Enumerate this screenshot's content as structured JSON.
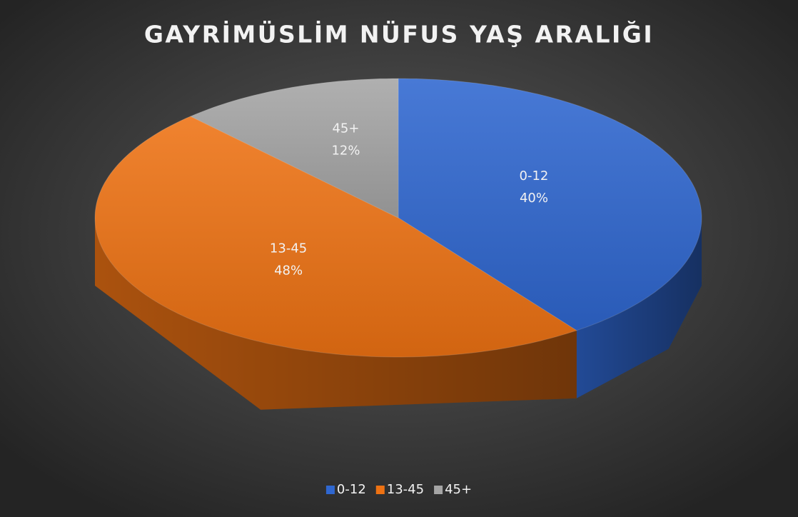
{
  "chart_data": {
    "type": "pie",
    "title": "GAYRİMÜSLİM NÜFUS YAŞ ARALIĞI",
    "categories": [
      "0-12",
      "13-45",
      "45+"
    ],
    "values": [
      40,
      48,
      12
    ],
    "value_labels": [
      "40%",
      "48%",
      "12%"
    ],
    "colors": [
      "#2f67d0",
      "#ee7213",
      "#a5a5a5"
    ],
    "legend": "bottom"
  }
}
